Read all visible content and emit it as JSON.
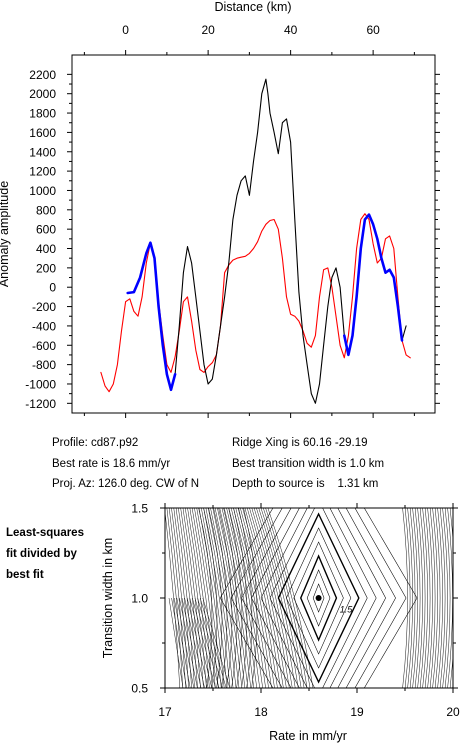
{
  "top_chart": {
    "x_axis_label": "Distance (km)",
    "y_axis_label": "Anomaly amplitude",
    "x_ticks": [
      0,
      20,
      40,
      60
    ],
    "y_ticks": [
      2200,
      2000,
      1800,
      1600,
      1400,
      1200,
      1000,
      800,
      600,
      400,
      200,
      0,
      -200,
      -400,
      -600,
      -800,
      -1000,
      -1200
    ],
    "colors": {
      "observed": "#000000",
      "model": "#ff0000",
      "fit_window": "#0000ff"
    }
  },
  "info": {
    "profile": "Profile: cd87.p92",
    "best_rate": "Best rate is 18.6 mm/yr",
    "proj_az": "Proj. Az: 126.0 deg. CW of N",
    "ridge_xing": "Ridge Xing is 60.16 -29.19",
    "best_width": "Best transition width is 1.0 km",
    "depth": "Depth to source is    1.31 km"
  },
  "side_note": [
    "Least-squares",
    "fit divided by",
    "best fit"
  ],
  "bottom_chart": {
    "x_axis_label": "Rate in mm/yr",
    "y_axis_label": "Transition width in km",
    "x_ticks": [
      "17",
      "18",
      "19",
      "20"
    ],
    "y_ticks": [
      "1.5",
      "1.0",
      "0.5"
    ],
    "contour_label": "1.5"
  },
  "chart_data": [
    {
      "type": "line",
      "xlim": [
        -13,
        75
      ],
      "ylim": [
        -1300,
        2400
      ],
      "series": [
        {
          "color": "#000000",
          "x": [
            0.5,
            2,
            3.5,
            5,
            6,
            7,
            8,
            9,
            10,
            11,
            12,
            13,
            14,
            15,
            16,
            17,
            18,
            19,
            20,
            21,
            22,
            23,
            24,
            25,
            26,
            27,
            28,
            29,
            30,
            31,
            32,
            33,
            34,
            34.5,
            35,
            36,
            37,
            38,
            39,
            40,
            41,
            42,
            43,
            44,
            45,
            46,
            47,
            48,
            49,
            50,
            51,
            52,
            53,
            54,
            55,
            56,
            57,
            58,
            59,
            60,
            61,
            62,
            63,
            64,
            65,
            66,
            67,
            68
          ],
          "y": [
            -60,
            -50,
            100,
            350,
            460,
            300,
            -200,
            -600,
            -900,
            -1060,
            -900,
            -400,
            150,
            420,
            250,
            -100,
            -450,
            -800,
            -1000,
            -950,
            -700,
            -400,
            -100,
            250,
            700,
            950,
            1100,
            1150,
            950,
            1300,
            1600,
            2000,
            2150,
            2000,
            1800,
            1600,
            1380,
            1700,
            1740,
            1500,
            700,
            -50,
            -500,
            -800,
            -1100,
            -1200,
            -1000,
            -600,
            -200,
            100,
            200,
            0,
            -500,
            -700,
            -500,
            -100,
            400,
            700,
            750,
            650,
            500,
            300,
            150,
            180,
            100,
            -200,
            -550,
            -400
          ]
        },
        {
          "color": "#ff0000",
          "x": [
            -6,
            -5,
            -4,
            -3,
            -2,
            -1,
            0,
            1,
            2,
            3,
            4,
            5,
            6,
            7,
            8,
            9,
            10,
            11,
            12,
            13,
            14,
            15,
            16,
            17,
            18,
            19,
            20,
            21,
            22,
            23,
            24,
            25,
            26,
            27,
            28,
            29,
            30,
            31,
            32,
            33,
            34,
            35,
            36,
            37,
            38,
            39,
            40,
            41,
            42,
            43,
            44,
            45,
            46,
            47,
            48,
            49,
            50,
            51,
            52,
            53,
            54,
            55,
            56,
            57,
            58,
            59,
            60,
            61,
            62,
            63,
            64,
            65,
            66,
            67,
            68,
            69
          ],
          "y": [
            -880,
            -1020,
            -1080,
            -1000,
            -800,
            -450,
            -150,
            -120,
            -250,
            -300,
            -100,
            250,
            460,
            300,
            -150,
            -500,
            -800,
            -880,
            -720,
            -450,
            -150,
            -100,
            -350,
            -650,
            -850,
            -880,
            -820,
            -780,
            -700,
            -400,
            150,
            230,
            280,
            300,
            310,
            320,
            350,
            400,
            470,
            580,
            650,
            690,
            700,
            600,
            300,
            -100,
            -280,
            -300,
            -350,
            -450,
            -580,
            -620,
            -500,
            -100,
            180,
            200,
            0,
            -300,
            -600,
            -730,
            -500,
            -100,
            400,
            700,
            760,
            700,
            450,
            250,
            300,
            500,
            530,
            400,
            -100,
            -550,
            -700,
            -730
          ]
        },
        {
          "color": "#0000ff",
          "x": [
            0.5,
            2,
            3.5,
            5,
            6,
            7,
            8,
            9,
            10,
            11,
            12
          ],
          "y": [
            -60,
            -50,
            100,
            350,
            460,
            300,
            -200,
            -600,
            -900,
            -1060,
            -900
          ]
        },
        {
          "color": "#0000ff",
          "x": [
            53,
            54,
            55,
            56,
            57,
            58,
            59,
            60,
            61,
            62,
            63,
            64,
            65,
            66,
            67
          ],
          "y": [
            -500,
            -700,
            -500,
            -100,
            400,
            700,
            750,
            650,
            500,
            300,
            150,
            180,
            100,
            -200,
            -550
          ]
        }
      ]
    },
    {
      "type": "contour",
      "xlim": [
        17,
        20
      ],
      "ylim": [
        0.5,
        1.5
      ],
      "best_fit": {
        "x": 18.6,
        "y": 1.0
      },
      "annotation": {
        "text": "1.5",
        "x": 18.82,
        "y": 0.92
      }
    }
  ]
}
